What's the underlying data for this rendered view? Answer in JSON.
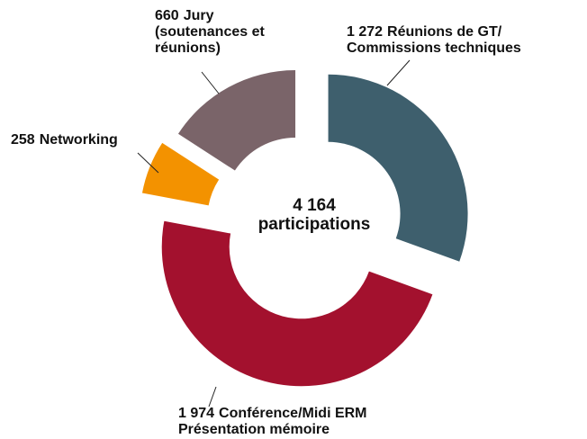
{
  "chart_data": {
    "type": "donut",
    "center_text": [
      "4 164",
      "participations"
    ],
    "categories": [
      [
        "Réunions de GT/",
        "Commissions techniques"
      ],
      [
        "Conférence/Midi ERM",
        "Présentation mémoire"
      ],
      [
        "Networking"
      ],
      [
        "Jury",
        "(soutenances et",
        "réunions)"
      ]
    ],
    "values": [
      1272,
      1974,
      258,
      660
    ],
    "value_labels": [
      "1 272",
      "1 974",
      "258",
      "660"
    ],
    "colors": [
      "#3e5f6d",
      "#a3112e",
      "#f39200",
      "#7a6469"
    ]
  }
}
